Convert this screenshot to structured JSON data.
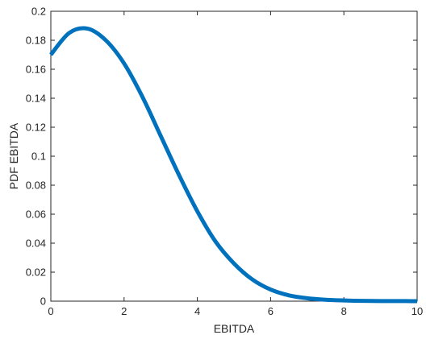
{
  "chart_data": {
    "type": "line",
    "title": "",
    "xlabel": "EBITDA",
    "ylabel": "PDF EBITDA",
    "xlim": [
      0,
      10
    ],
    "ylim": [
      0,
      0.2
    ],
    "x_ticks": [
      0,
      2,
      4,
      6,
      8,
      10
    ],
    "y_ticks": [
      0,
      0.02,
      0.04,
      0.06,
      0.08,
      0.1,
      0.12,
      0.14,
      0.16,
      0.18,
      0.2
    ],
    "x_tick_labels": [
      "0",
      "2",
      "4",
      "6",
      "8",
      "10"
    ],
    "y_tick_labels": [
      "0",
      "0.02",
      "0.04",
      "0.06",
      "0.08",
      "0.1",
      "0.12",
      "0.14",
      "0.16",
      "0.18",
      "0.2"
    ],
    "grid": false,
    "legend": "none",
    "series": [
      {
        "color": "#0072BD",
        "x": [
          0,
          0.5,
          1,
          1.5,
          2,
          2.5,
          3,
          3.5,
          4,
          4.5,
          5,
          5.5,
          6,
          6.5,
          7,
          7.5,
          8,
          8.5,
          9,
          9.5,
          10
        ],
        "y": [
          0.17,
          0.185,
          0.188,
          0.18,
          0.164,
          0.141,
          0.114,
          0.087,
          0.062,
          0.041,
          0.026,
          0.015,
          0.008,
          0.004,
          0.002,
          0.001,
          0.0005,
          0.0002,
          0.0001,
          5e-05,
          2e-05
        ]
      }
    ]
  }
}
